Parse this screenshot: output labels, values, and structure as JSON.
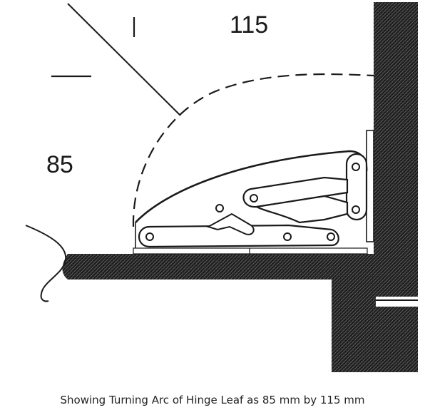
{
  "diagram": {
    "dimension_top": "115",
    "dimension_left": "85",
    "caption": "Showing Turning Arc of Hinge Leaf as 85 mm by 115 mm"
  },
  "colors": {
    "stroke": "#1a1a1a",
    "solid_fill": "#1c1c1c",
    "background": "#ffffff"
  }
}
